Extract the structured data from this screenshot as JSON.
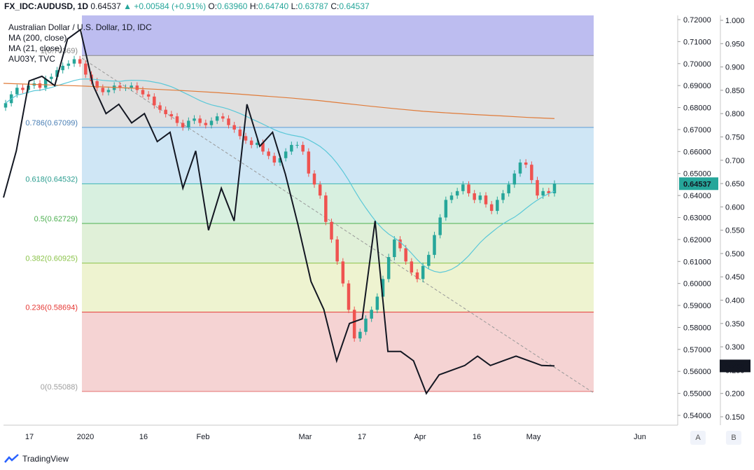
{
  "header": {
    "symbol": "FX_IDC:AUDUSD, 1D",
    "last": "0.64537",
    "change": "+0.00584 (+0.91%)",
    "o_label": "O:",
    "o": "0.63960",
    "h_label": "H:",
    "h": "0.64740",
    "l_label": "L:",
    "l": "0.63787",
    "c_label": "C:",
    "c": "0.64537"
  },
  "legend": {
    "title": "Australian Dollar / U.S. Dollar, 1D, IDC",
    "ma200": "MA (200, close)",
    "ma21": "MA (21, close)",
    "au03y": "AU03Y, TVC"
  },
  "footer": {
    "brand": "TradingView"
  },
  "buttons": {
    "a": "A",
    "b": "B"
  },
  "colors": {
    "up": "#26a69a",
    "down": "#ef5350",
    "ma200": "#e07b39",
    "ma21": "#5bc8d8",
    "au03y": "#131722",
    "fib_1": "#bdbdf0",
    "fib_0786": "#e0e0e0",
    "fib_0618": "#cfe6f5",
    "fib_05": "#d8f0e0",
    "fib_0382": "#e0f0d8",
    "fib_0236": "#eef3d0",
    "fib_0": "#f5d3d3"
  },
  "chart_data": {
    "type": "candlestick",
    "title": "Australian Dollar / U.S. Dollar, 1D, IDC",
    "right_axis_ticks": [
      "0.72000",
      "0.71000",
      "0.70000",
      "0.69000",
      "0.68000",
      "0.67000",
      "0.66000",
      "0.65000",
      "0.64000",
      "0.63000",
      "0.62000",
      "0.61000",
      "0.60000",
      "0.59000",
      "0.58000",
      "0.57000",
      "0.56000",
      "0.55000",
      "0.54000"
    ],
    "left_yield_axis_ticks": [
      "1.000",
      "0.950",
      "0.900",
      "0.850",
      "0.800",
      "0.750",
      "0.700",
      "0.650",
      "0.600",
      "0.550",
      "0.500",
      "0.450",
      "0.400",
      "0.350",
      "0.300",
      "0.250",
      "0.200",
      "0.150"
    ],
    "x_ticks": [
      "17",
      "2020",
      "16",
      "Feb",
      "Mar",
      "17",
      "Apr",
      "16",
      "May",
      "Jun"
    ],
    "fib_levels": [
      {
        "label": "1(0.70369)",
        "value": 0.70369
      },
      {
        "label": "0.786(0.67099)",
        "value": 0.67099
      },
      {
        "label": "0.618(0.64532)",
        "value": 0.64532
      },
      {
        "label": "0.5(0.62729)",
        "value": 0.62729
      },
      {
        "label": "0.382(0.60925)",
        "value": 0.60925
      },
      {
        "label": "0.236(0.58694)",
        "value": 0.58694
      },
      {
        "label": "0(0.55088)",
        "value": 0.55088
      }
    ],
    "price_tag": "0.64537",
    "yield_tag": "0.259",
    "candles_close": [
      0.682,
      0.686,
      0.689,
      0.688,
      0.69,
      0.691,
      0.689,
      0.693,
      0.694,
      0.697,
      0.699,
      0.7,
      0.702,
      0.7,
      0.695,
      0.692,
      0.689,
      0.687,
      0.688,
      0.69,
      0.689,
      0.689,
      0.69,
      0.688,
      0.686,
      0.685,
      0.681,
      0.679,
      0.677,
      0.676,
      0.673,
      0.671,
      0.674,
      0.675,
      0.673,
      0.672,
      0.674,
      0.676,
      0.675,
      0.672,
      0.67,
      0.667,
      0.665,
      0.663,
      0.664,
      0.66,
      0.658,
      0.655,
      0.657,
      0.66,
      0.663,
      0.663,
      0.66,
      0.65,
      0.645,
      0.64,
      0.628,
      0.62,
      0.61,
      0.6,
      0.588,
      0.575,
      0.578,
      0.584,
      0.588,
      0.594,
      0.602,
      0.612,
      0.62,
      0.616,
      0.61,
      0.605,
      0.602,
      0.608,
      0.613,
      0.622,
      0.63,
      0.638,
      0.64,
      0.642,
      0.645,
      0.641,
      0.638,
      0.64,
      0.636,
      0.633,
      0.638,
      0.641,
      0.645,
      0.65,
      0.655,
      0.654,
      0.647,
      0.64,
      0.642,
      0.641,
      0.6454
    ],
    "ma200": [
      0.691,
      0.6906,
      0.6902,
      0.6898,
      0.6893,
      0.6888,
      0.6882,
      0.6876,
      0.6869,
      0.6861,
      0.6852,
      0.6843,
      0.6832,
      0.6819,
      0.6806,
      0.6794,
      0.6783,
      0.6775,
      0.6768,
      0.6762,
      0.6755,
      0.675
    ],
    "au03y": [
      0.62,
      0.72,
      0.87,
      0.88,
      0.86,
      0.96,
      0.98,
      0.86,
      0.8,
      0.82,
      0.78,
      0.8,
      0.74,
      0.76,
      0.64,
      0.72,
      0.55,
      0.64,
      0.57,
      0.82,
      0.73,
      0.76,
      0.67,
      0.56,
      0.44,
      0.38,
      0.27,
      0.35,
      0.36,
      0.57,
      0.29,
      0.29,
      0.27,
      0.2,
      0.24,
      0.25,
      0.26,
      0.28,
      0.26,
      0.27,
      0.28,
      0.27,
      0.26,
      0.259
    ]
  }
}
